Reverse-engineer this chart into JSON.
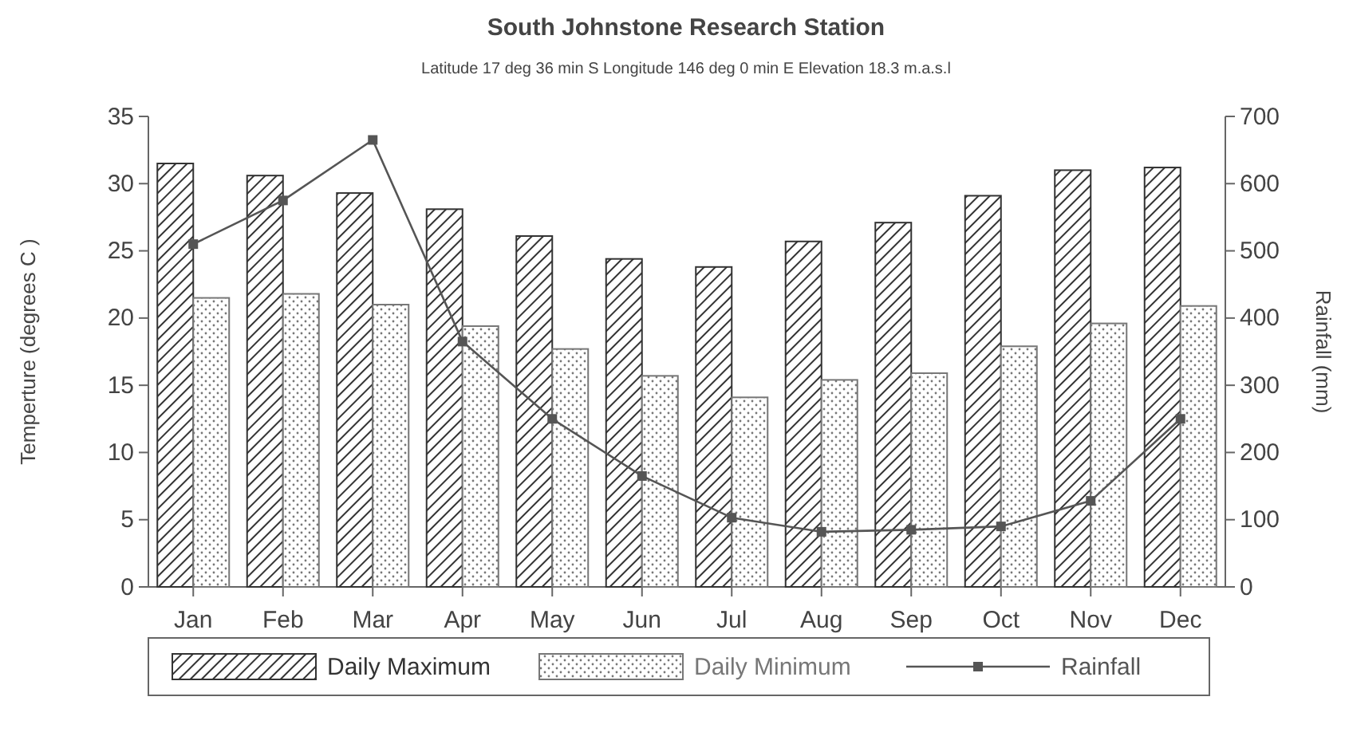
{
  "chart_data": {
    "type": "bar",
    "title": "South Johnstone Research Station",
    "subtitle": "Latitude 17 deg 36 min  S  Longitude 146 deg 0 min E  Elevation  18.3 m.a.s.l",
    "ylabel": "Temperture (degrees C )",
    "y2label": "Rainfall (mm)",
    "categories": [
      "Jan",
      "Feb",
      "Mar",
      "Apr",
      "May",
      "Jun",
      "Jul",
      "Aug",
      "Sep",
      "Oct",
      "Nov",
      "Dec"
    ],
    "series": [
      {
        "name": "Daily Maximum",
        "color": "#333333",
        "values": [
          31.5,
          30.6,
          29.3,
          28.1,
          26.1,
          24.4,
          23.8,
          25.7,
          27.1,
          29.1,
          31.0,
          31.2
        ]
      },
      {
        "name": "Daily Minimum",
        "color": "#777777",
        "values": [
          21.5,
          21.8,
          21.0,
          19.4,
          17.7,
          15.7,
          14.1,
          15.4,
          15.9,
          17.9,
          19.6,
          20.9
        ]
      },
      {
        "name": "Rainfall",
        "type": "line",
        "axis": "y2",
        "color": "#555555",
        "values": [
          510,
          575,
          665,
          365,
          250,
          165,
          103,
          82,
          85,
          90,
          128,
          250
        ]
      }
    ],
    "ylim": [
      0,
      35
    ],
    "yticks": [
      0,
      5,
      10,
      15,
      20,
      25,
      30,
      35
    ],
    "y2lim": [
      0,
      700
    ],
    "y2ticks": [
      0,
      100,
      200,
      300,
      400,
      500,
      600,
      700
    ],
    "marker": "square",
    "legend": "bottom",
    "grid": false
  }
}
